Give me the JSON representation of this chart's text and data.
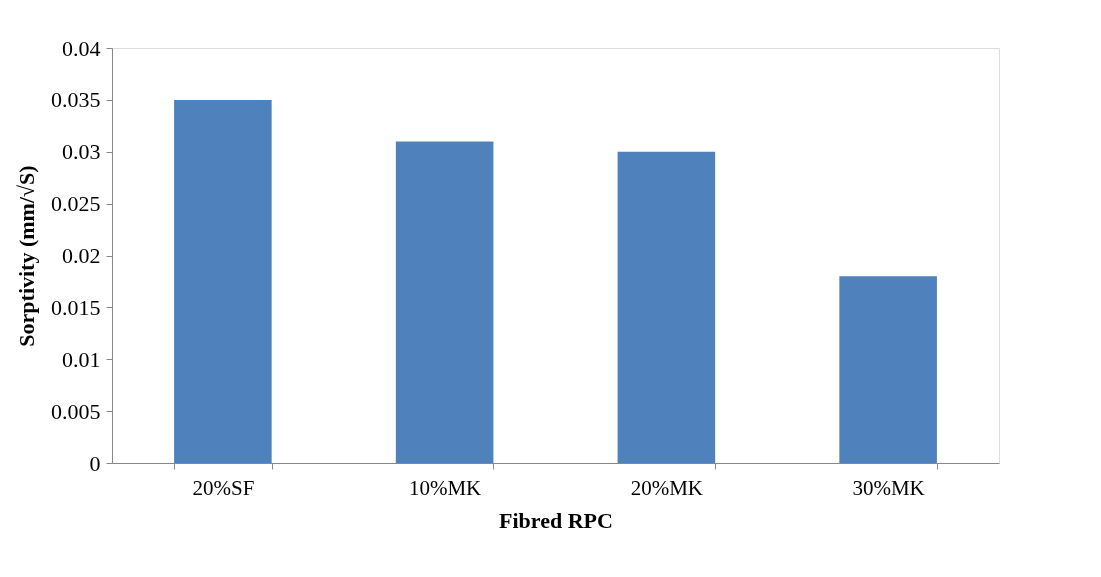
{
  "chart_data": {
    "type": "bar",
    "xlabel": "Fibred RPC",
    "ylabel": "Sorptivity (mm/√S)",
    "categories": [
      "20%SF",
      "10%MK",
      "20%MK",
      "30%MK"
    ],
    "values": [
      0.035,
      0.031,
      0.03,
      0.018
    ],
    "color": "#4f81bd",
    "ylim": [
      0,
      0.04
    ],
    "yticks": [
      0,
      0.005,
      0.01,
      0.015,
      0.02,
      0.025,
      0.03,
      0.035,
      0.04
    ],
    "grid": false
  }
}
